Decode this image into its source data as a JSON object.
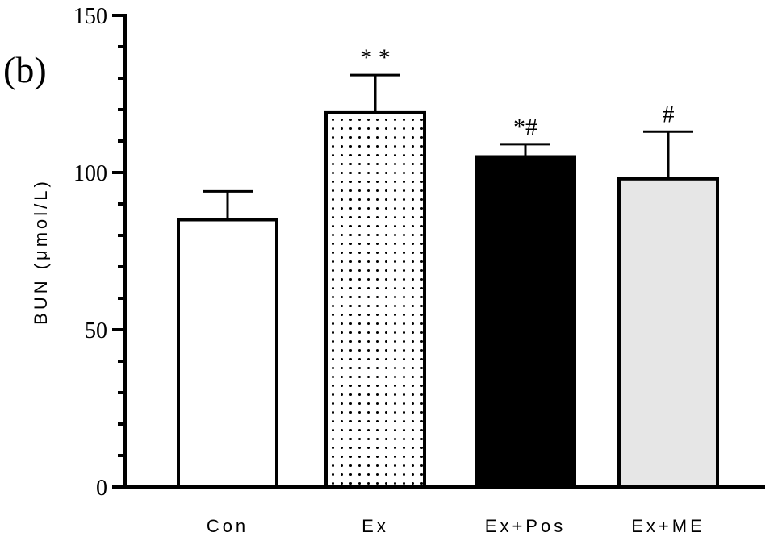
{
  "panel_label": "(b)",
  "chart_data": {
    "type": "bar",
    "categories": [
      "Con",
      "Ex",
      "Ex+Pos",
      "Ex+ME"
    ],
    "values": [
      85,
      119,
      105,
      98
    ],
    "errors": [
      9,
      12,
      4,
      15
    ],
    "annotations": [
      "",
      "* *",
      "*#",
      "#"
    ],
    "fills": [
      "#ffffff",
      "dots",
      "#000000",
      "#e6e6e6"
    ],
    "xlabel": "",
    "ylabel": "BUN (μmol/L)",
    "ylim": [
      0,
      150
    ],
    "yticks": [
      0,
      50,
      100,
      150
    ],
    "minor_tick_step": 10,
    "grid": false,
    "legend": "none"
  }
}
